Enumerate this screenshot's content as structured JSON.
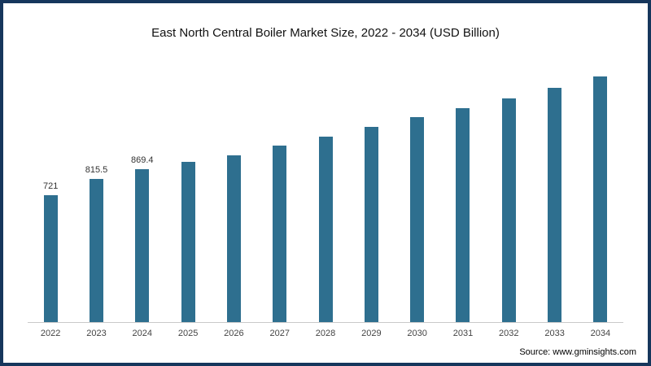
{
  "chart_data": {
    "type": "bar",
    "title": "East North Central Boiler Market Size, 2022 - 2034 (USD Billion)",
    "categories": [
      "2022",
      "2023",
      "2024",
      "2025",
      "2026",
      "2027",
      "2028",
      "2029",
      "2030",
      "2031",
      "2032",
      "2033",
      "2034"
    ],
    "values": [
      721,
      815.5,
      869.4,
      910,
      950,
      1005,
      1055,
      1110,
      1165,
      1215,
      1270,
      1330,
      1395
    ],
    "data_labels": [
      "721",
      "815.5",
      "869.4",
      "",
      "",
      "",
      "",
      "",
      "",
      "",
      "",
      "",
      ""
    ],
    "xlabel": "",
    "ylabel": "",
    "ylim": [
      0,
      1480
    ],
    "grid": false,
    "legend": false,
    "bar_color": "#2e6f8f"
  },
  "colors": {
    "frame_border": "#16365c",
    "bar": "#2e6f8f",
    "axis_line": "#c9c9c9"
  },
  "source": {
    "label": "Source: www.gminsights.com"
  }
}
